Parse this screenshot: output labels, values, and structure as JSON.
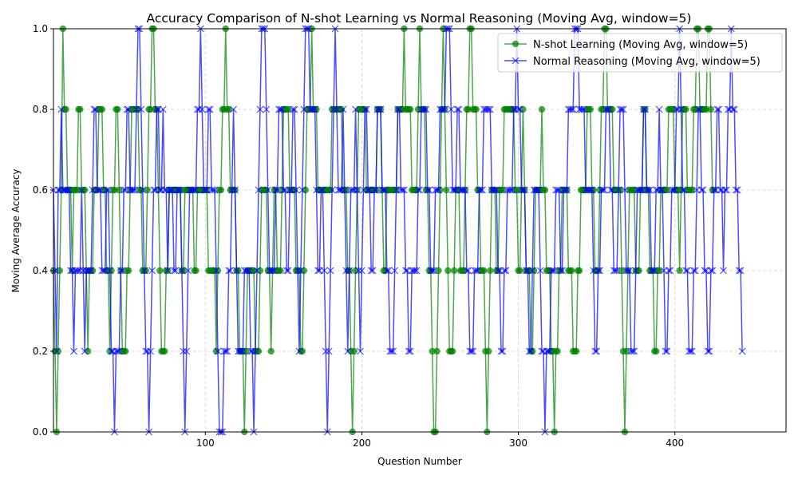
{
  "chart_data": {
    "type": "line",
    "title": "Accuracy Comparison of N-shot Learning vs Normal Reasoning (Moving Avg, window=5)",
    "xlabel": "Question Number",
    "ylabel": "Moving Average Accuracy",
    "xlim": [
      3,
      471
    ],
    "ylim": [
      0.0,
      1.0
    ],
    "xticks": [
      100,
      200,
      300,
      400
    ],
    "yticks": [
      0.0,
      0.2,
      0.4,
      0.6,
      0.8,
      1.0
    ],
    "ytick_labels": [
      "0.0",
      "0.2",
      "0.4",
      "0.6",
      "0.8",
      "1.0"
    ],
    "grid": true,
    "legend_position": "upper-right",
    "series": [
      {
        "name": "N-shot Learning (Moving Avg, window=5)",
        "color": "#008000",
        "marker": "circle",
        "values": [
          0.4,
          0.2,
          0.0,
          0.2,
          0.4,
          0.6,
          1.0,
          0.8,
          0.8,
          0.6,
          0.6,
          0.6,
          0.4,
          0.6,
          0.6,
          0.6,
          0.8,
          0.8,
          0.6,
          0.6,
          0.6,
          0.4,
          0.2,
          0.4,
          0.4,
          0.4,
          0.6,
          0.6,
          0.6,
          0.8,
          0.8,
          0.8,
          0.6,
          0.6,
          0.4,
          0.4,
          0.2,
          0.4,
          0.6,
          0.6,
          0.8,
          0.8,
          0.6,
          0.4,
          0.2,
          0.2,
          0.2,
          0.4,
          0.4,
          0.6,
          0.8,
          0.8,
          0.8,
          0.8,
          0.8,
          0.6,
          0.6,
          0.4,
          0.4,
          0.4,
          0.6,
          0.8,
          0.8,
          1.0,
          1.0,
          0.8,
          0.8,
          0.6,
          0.4,
          0.2,
          0.2,
          0.2,
          0.4,
          0.4,
          0.6,
          0.6,
          0.6,
          0.6,
          0.6,
          0.6,
          0.6,
          0.6,
          0.4,
          0.4,
          0.6,
          0.6,
          0.6,
          0.6,
          0.6,
          0.6,
          0.4,
          0.4,
          0.6,
          0.6,
          0.6,
          0.6,
          0.6,
          0.6,
          0.6,
          0.4,
          0.4,
          0.4,
          0.4,
          0.4,
          0.2,
          0.4,
          0.6,
          0.6,
          0.8,
          0.8,
          1.0,
          0.8,
          0.8,
          0.6,
          0.6,
          0.6,
          0.6,
          0.4,
          0.4,
          0.2,
          0.2,
          0.2,
          0.0,
          0.2,
          0.4,
          0.4,
          0.4,
          0.4,
          0.4,
          0.2,
          0.2,
          0.2,
          0.4,
          0.6,
          0.6,
          0.6,
          0.6,
          0.4,
          0.4,
          0.2,
          0.4,
          0.6,
          0.6,
          0.4,
          0.4,
          0.4,
          0.6,
          0.8,
          0.8,
          0.8,
          0.8,
          0.6,
          0.6,
          0.6,
          0.6,
          0.4,
          0.4,
          0.4,
          0.2,
          0.2,
          0.4,
          0.6,
          0.8,
          0.8,
          0.8,
          1.0,
          0.8,
          0.8,
          0.8,
          0.6,
          0.6,
          0.6,
          0.6,
          0.6,
          0.6,
          0.6,
          0.6,
          0.6,
          0.8,
          0.8,
          0.8,
          0.8,
          0.8,
          0.8,
          0.8,
          0.6,
          0.6,
          0.6,
          0.4,
          0.4,
          0.2,
          0.0,
          0.2,
          0.4,
          0.6,
          0.8,
          0.8,
          0.8,
          0.8,
          0.8,
          0.6,
          0.6,
          0.6,
          0.6,
          0.6,
          0.6,
          0.6,
          0.8,
          0.8,
          0.8,
          0.6,
          0.4,
          0.4,
          0.6,
          0.6,
          0.6,
          0.6,
          0.6,
          0.6,
          0.6,
          0.8,
          0.8,
          0.8,
          0.8,
          1.0,
          0.8,
          0.8,
          0.8,
          0.8,
          0.6,
          0.6,
          0.6,
          0.6,
          0.8,
          1.0,
          0.8,
          0.8,
          0.8,
          0.6,
          0.6,
          0.4,
          0.4,
          0.2,
          0.0,
          0.0,
          0.2,
          0.4,
          0.6,
          0.8,
          1.0,
          0.8,
          0.6,
          0.4,
          0.2,
          0.2,
          0.2,
          0.4,
          0.6,
          0.6,
          0.6,
          0.4,
          0.4,
          0.4,
          0.6,
          0.8,
          0.8,
          1.0,
          1.0,
          0.8,
          0.8,
          0.8,
          0.6,
          0.6,
          0.4,
          0.4,
          0.4,
          0.2,
          0.0,
          0.2,
          0.4,
          0.6,
          0.6,
          0.6,
          0.4,
          0.4,
          0.6,
          0.6,
          0.6,
          0.8,
          0.8,
          0.8,
          0.8,
          0.8,
          0.8,
          0.8,
          0.6,
          0.6,
          0.4,
          0.4,
          0.6,
          0.8,
          0.6,
          0.4,
          0.4,
          0.4,
          0.2,
          0.2,
          0.4,
          0.6,
          0.6,
          0.6,
          0.6,
          0.8,
          0.6,
          0.6,
          0.4,
          0.4,
          0.4,
          0.2,
          0.2,
          0.0,
          0.2,
          0.2,
          0.4,
          0.4,
          0.6,
          0.6,
          0.6,
          0.6,
          0.4,
          0.4,
          0.4,
          0.2,
          0.2,
          0.2,
          0.4,
          0.4,
          0.6,
          0.6,
          0.6,
          0.6,
          0.8,
          0.8,
          0.8,
          0.6,
          0.6,
          0.4,
          0.4,
          0.4,
          0.6,
          0.8,
          0.8,
          1.0,
          1.0,
          0.8,
          0.8,
          0.8,
          0.8,
          0.6,
          0.6,
          0.6,
          0.6,
          0.6,
          0.4,
          0.2,
          0.0,
          0.2,
          0.4,
          0.6,
          0.6,
          0.6,
          0.6,
          0.4,
          0.4,
          0.4,
          0.6,
          0.6,
          0.8,
          0.8,
          0.6,
          0.6,
          0.4,
          0.4,
          0.4,
          0.2,
          0.2,
          0.4,
          0.4,
          0.6,
          0.6,
          0.6,
          0.6,
          0.6,
          0.8,
          0.8,
          0.8,
          0.8,
          0.6,
          0.6,
          0.6,
          0.4,
          0.6,
          0.8,
          0.8,
          0.8,
          0.6,
          0.6,
          0.6,
          0.6,
          0.8,
          0.8,
          1.0,
          1.0,
          0.8,
          0.8,
          0.8,
          0.8,
          0.8,
          1.0,
          1.0,
          0.8,
          0.6,
          0.6
        ]
      },
      {
        "name": "Normal Reasoning (Moving Avg, window=5)",
        "color": "#0000ff",
        "marker": "x",
        "values": [
          0.6,
          0.4,
          0.2,
          0.6,
          0.6,
          0.8,
          0.6,
          0.6,
          0.6,
          0.6,
          0.6,
          0.4,
          0.4,
          0.2,
          0.4,
          0.4,
          0.4,
          0.4,
          0.6,
          0.4,
          0.2,
          0.4,
          0.4,
          0.4,
          0.4,
          0.6,
          0.8,
          0.8,
          0.6,
          0.6,
          0.6,
          0.4,
          0.4,
          0.4,
          0.6,
          0.6,
          0.4,
          0.2,
          0.2,
          0.0,
          0.2,
          0.2,
          0.2,
          0.4,
          0.4,
          0.6,
          0.6,
          0.8,
          0.8,
          0.6,
          0.6,
          0.6,
          0.6,
          0.8,
          1.0,
          1.0,
          0.8,
          0.6,
          0.4,
          0.2,
          0.2,
          0.0,
          0.2,
          0.4,
          0.6,
          0.6,
          0.8,
          0.8,
          0.6,
          0.6,
          0.8,
          0.6,
          0.6,
          0.4,
          0.6,
          0.6,
          0.6,
          0.4,
          0.4,
          0.6,
          0.6,
          0.6,
          0.4,
          0.2,
          0.0,
          0.2,
          0.4,
          0.6,
          0.6,
          0.6,
          0.6,
          0.6,
          0.8,
          0.8,
          1.0,
          0.8,
          0.6,
          0.6,
          0.6,
          0.8,
          0.8,
          0.6,
          0.6,
          0.6,
          0.4,
          0.2,
          0.0,
          0.0,
          0.0,
          0.2,
          0.2,
          0.2,
          0.4,
          0.4,
          0.6,
          0.8,
          0.6,
          0.4,
          0.2,
          0.2,
          0.2,
          0.2,
          0.4,
          0.4,
          0.4,
          0.4,
          0.2,
          0.2,
          0.0,
          0.2,
          0.4,
          0.6,
          0.8,
          1.0,
          1.0,
          1.0,
          0.8,
          0.6,
          0.4,
          0.4,
          0.4,
          0.4,
          0.6,
          0.6,
          0.8,
          0.8,
          0.8,
          0.6,
          0.6,
          0.4,
          0.4,
          0.6,
          0.6,
          0.8,
          0.8,
          0.6,
          0.4,
          0.2,
          0.4,
          0.6,
          0.8,
          1.0,
          1.0,
          1.0,
          0.8,
          0.8,
          0.8,
          0.8,
          0.6,
          0.4,
          0.4,
          0.6,
          0.6,
          0.4,
          0.2,
          0.0,
          0.2,
          0.4,
          0.6,
          0.8,
          1.0,
          0.8,
          0.6,
          0.6,
          0.6,
          0.8,
          0.6,
          0.4,
          0.2,
          0.4,
          0.6,
          0.6,
          0.6,
          0.8,
          0.6,
          0.4,
          0.2,
          0.4,
          0.6,
          0.8,
          0.8,
          0.6,
          0.6,
          0.4,
          0.4,
          0.6,
          0.6,
          0.8,
          0.8,
          0.8,
          0.6,
          0.6,
          0.6,
          0.4,
          0.4,
          0.2,
          0.2,
          0.2,
          0.4,
          0.6,
          0.8,
          0.8,
          0.6,
          0.6,
          0.6,
          0.4,
          0.4,
          0.2,
          0.2,
          0.4,
          0.4,
          0.4,
          0.4,
          0.6,
          0.6,
          0.8,
          0.8,
          0.8,
          0.8,
          0.6,
          0.6,
          0.4,
          0.4,
          0.4,
          0.6,
          0.6,
          0.6,
          0.8,
          0.8,
          0.8,
          0.8,
          1.0,
          1.0,
          1.0,
          0.8,
          0.6,
          0.6,
          0.6,
          0.8,
          0.8,
          0.6,
          0.6,
          0.6,
          0.6,
          0.4,
          0.4,
          0.2,
          0.2,
          0.2,
          0.4,
          0.4,
          0.4,
          0.6,
          0.6,
          0.6,
          0.8,
          0.8,
          0.8,
          0.8,
          0.8,
          0.6,
          0.6,
          0.6,
          0.6,
          0.4,
          0.4,
          0.2,
          0.2,
          0.4,
          0.4,
          0.6,
          0.6,
          0.6,
          0.6,
          0.8,
          0.8,
          1.0,
          0.8,
          0.8,
          0.6,
          0.6,
          0.6,
          0.4,
          0.4,
          0.2,
          0.2,
          0.4,
          0.6,
          0.6,
          0.6,
          0.6,
          0.4,
          0.2,
          0.2,
          0.0,
          0.2,
          0.2,
          0.2,
          0.4,
          0.4,
          0.4,
          0.6,
          0.6,
          0.6,
          0.4,
          0.4,
          0.6,
          0.6,
          0.6,
          0.8,
          0.8,
          0.8,
          0.8,
          1.0,
          1.0,
          1.0,
          0.8,
          0.8,
          0.8,
          0.8,
          0.6,
          0.6,
          0.6,
          0.6,
          0.6,
          0.4,
          0.2,
          0.2,
          0.4,
          0.4,
          0.6,
          0.6,
          0.6,
          0.8,
          0.8,
          0.8,
          0.6,
          0.6,
          0.4,
          0.4,
          0.4,
          0.6,
          0.8,
          0.8,
          0.8,
          0.6,
          0.4,
          0.4,
          0.4,
          0.2,
          0.2,
          0.2,
          0.4,
          0.6,
          0.6,
          0.6,
          0.6,
          0.8,
          0.8,
          0.6,
          0.6,
          0.6,
          0.4,
          0.4,
          0.4,
          0.6,
          0.6,
          0.8,
          0.6,
          0.6,
          0.4,
          0.2,
          0.2,
          0.4,
          0.4,
          0.6,
          0.6,
          0.6,
          0.8,
          0.8,
          1.0,
          0.8,
          0.6,
          0.6,
          0.4,
          0.4,
          0.2,
          0.2,
          0.2,
          0.4,
          0.4,
          0.6,
          0.8,
          0.8,
          0.6,
          0.6,
          0.4,
          0.4,
          0.2,
          0.2,
          0.4,
          0.4,
          0.6,
          0.6,
          0.8,
          0.8,
          0.6,
          0.6,
          0.4,
          0.6,
          0.6,
          0.8,
          0.8,
          1.0,
          0.8,
          0.8,
          0.6,
          0.6,
          0.4,
          0.4,
          0.2
        ]
      }
    ]
  }
}
